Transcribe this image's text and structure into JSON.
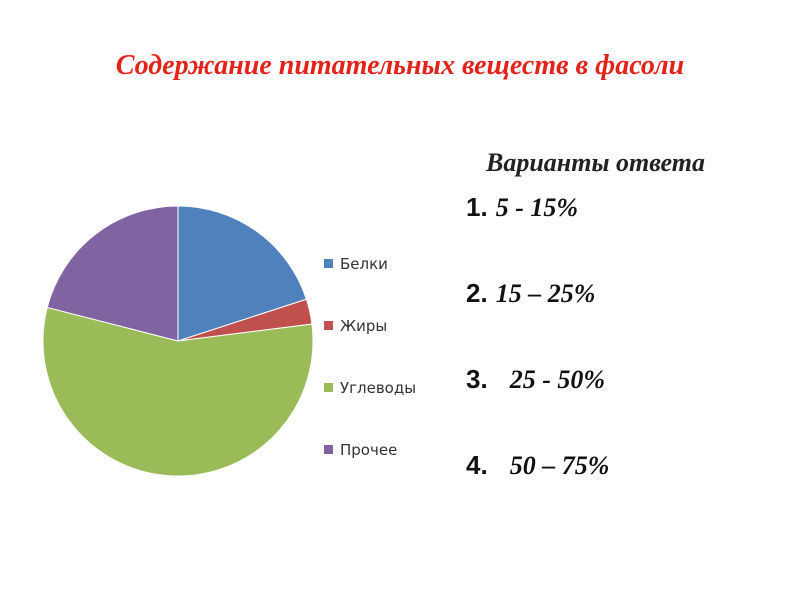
{
  "title": "Содержание питательных веществ в фасоли",
  "answers": {
    "heading": "Варианты ответа",
    "items": [
      {
        "num": "1.",
        "text": "5 - 15%"
      },
      {
        "num": "2.",
        "text": "15 – 25%"
      },
      {
        "num": "3.",
        "text": "25 - 50%"
      },
      {
        "num": "4.",
        "text": "50 – 75%"
      }
    ]
  },
  "chart_data": {
    "type": "pie",
    "categories": [
      "Белки",
      "Жиры",
      "Углеводы",
      "Прочее"
    ],
    "values": [
      20,
      3,
      56,
      21
    ],
    "colors": [
      "#4f81bd",
      "#c0504d",
      "#9bbb59",
      "#8064a2"
    ],
    "legend_position": "right"
  }
}
